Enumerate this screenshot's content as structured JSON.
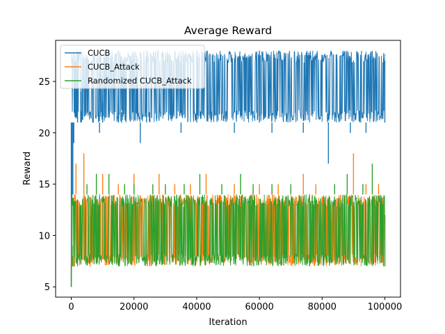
{
  "chart_data": {
    "type": "line",
    "title": "Average Reward",
    "xlabel": "Iteration",
    "ylabel": "Reward",
    "xlim": [
      -5000,
      105000
    ],
    "ylim": [
      4.0,
      29.0
    ],
    "xticks": [
      0,
      20000,
      40000,
      60000,
      80000,
      100000
    ],
    "xtick_labels": [
      "0",
      "20000",
      "40000",
      "60000",
      "80000",
      "100000"
    ],
    "yticks": [
      5,
      10,
      15,
      20,
      25
    ],
    "ytick_labels": [
      "5",
      "10",
      "15",
      "20",
      "25"
    ],
    "legend_position": "upper-left",
    "grid": false,
    "series": [
      {
        "name": "CUCB",
        "color": "#1f77b4",
        "band": {
          "x": [
            0,
            100000
          ],
          "low": 21,
          "high": 28
        },
        "values": [
          [
            0,
            5
          ],
          [
            200,
            11
          ],
          [
            500,
            14
          ],
          [
            800,
            19
          ],
          [
            1200,
            21
          ],
          [
            2000,
            28
          ],
          [
            3000,
            24
          ],
          [
            5000,
            21
          ],
          [
            7000,
            28
          ],
          [
            9000,
            20
          ],
          [
            10000,
            23
          ],
          [
            15000,
            28
          ],
          [
            16000,
            22
          ],
          [
            22000,
            19
          ],
          [
            24000,
            28
          ],
          [
            30000,
            21
          ],
          [
            35000,
            20
          ],
          [
            40000,
            28
          ],
          [
            48000,
            21
          ],
          [
            52000,
            20
          ],
          [
            56000,
            21
          ],
          [
            60000,
            28
          ],
          [
            64000,
            20
          ],
          [
            70000,
            21
          ],
          [
            74000,
            20
          ],
          [
            78000,
            21
          ],
          [
            82000,
            17
          ],
          [
            85000,
            21
          ],
          [
            89000,
            20
          ],
          [
            92000,
            21
          ],
          [
            94000,
            20
          ],
          [
            100000,
            27
          ]
        ]
      },
      {
        "name": "CUCB_Attack",
        "color": "#ff7f0e",
        "band": {
          "x": [
            0,
            100000
          ],
          "low": 7,
          "high": 14
        },
        "values": [
          [
            0,
            6
          ],
          [
            400,
            8
          ],
          [
            1000,
            14
          ],
          [
            1500,
            17
          ],
          [
            4000,
            18
          ],
          [
            6000,
            12
          ],
          [
            10000,
            16
          ],
          [
            15000,
            15
          ],
          [
            20000,
            16
          ],
          [
            25000,
            13
          ],
          [
            28000,
            16
          ],
          [
            33000,
            15
          ],
          [
            38000,
            15
          ],
          [
            43000,
            16
          ],
          [
            52000,
            15
          ],
          [
            60000,
            15
          ],
          [
            66000,
            15
          ],
          [
            74000,
            16
          ],
          [
            78000,
            15
          ],
          [
            90000,
            18
          ],
          [
            94000,
            15
          ],
          [
            98000,
            15
          ],
          [
            100000,
            12
          ]
        ]
      },
      {
        "name": "Randomized CUCB_Attack",
        "color": "#2ca02c",
        "band": {
          "x": [
            0,
            100000
          ],
          "low": 7,
          "high": 14
        },
        "values": [
          [
            0,
            5
          ],
          [
            300,
            9
          ],
          [
            800,
            11
          ],
          [
            2000,
            13
          ],
          [
            5000,
            15
          ],
          [
            8000,
            16
          ],
          [
            12000,
            16
          ],
          [
            17000,
            15
          ],
          [
            20000,
            15
          ],
          [
            26000,
            15
          ],
          [
            30000,
            15
          ],
          [
            36000,
            15
          ],
          [
            41000,
            16
          ],
          [
            48000,
            15
          ],
          [
            54000,
            16
          ],
          [
            58000,
            15
          ],
          [
            64000,
            15
          ],
          [
            70000,
            15
          ],
          [
            76000,
            14
          ],
          [
            84000,
            15
          ],
          [
            88000,
            16
          ],
          [
            93000,
            15
          ],
          [
            96000,
            17
          ],
          [
            100000,
            12
          ]
        ]
      }
    ]
  }
}
